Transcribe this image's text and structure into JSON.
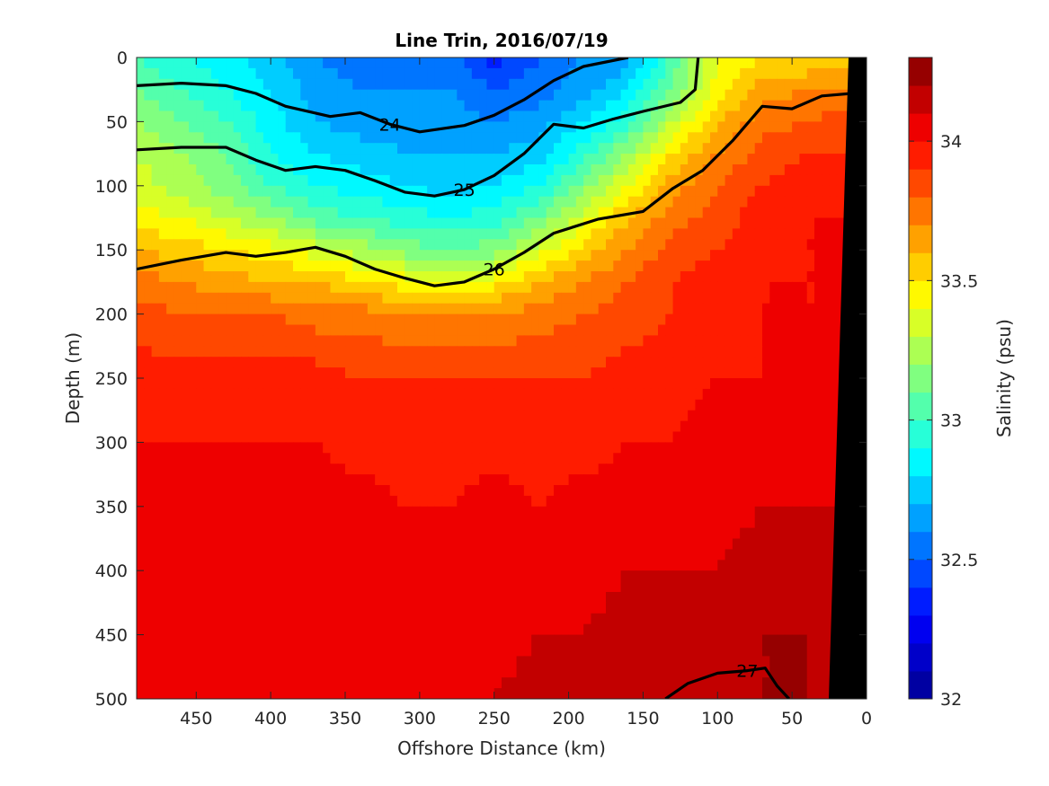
{
  "chart_data": {
    "type": "heatmap",
    "title": "Line Trin, 2016/07/19",
    "xlabel": "Offshore Distance (km)",
    "ylabel": "Depth (m)",
    "xlim": [
      490,
      0
    ],
    "ylim": [
      0,
      500
    ],
    "x_reversed": true,
    "y_reversed": true,
    "xticks": [
      450,
      400,
      350,
      300,
      250,
      200,
      150,
      100,
      50,
      0
    ],
    "yticks": [
      0,
      50,
      100,
      150,
      200,
      250,
      300,
      350,
      400,
      450,
      500
    ],
    "colorbar": {
      "label": "Salinity (psu)",
      "range": [
        32,
        34.3
      ],
      "ticks": [
        32,
        32.5,
        33,
        33.5,
        34
      ],
      "levels": 23,
      "colormap": [
        "#00008f",
        "#0000ff",
        "#0080ff",
        "#00ffff",
        "#80ff80",
        "#ffff00",
        "#ff8000",
        "#ff0000",
        "#800000"
      ]
    },
    "field_x": [
      490,
      460,
      430,
      400,
      370,
      340,
      310,
      280,
      250,
      220,
      190,
      160,
      130,
      100,
      70,
      40,
      10
    ],
    "field_depth": [
      0,
      25,
      50,
      75,
      100,
      125,
      150,
      175,
      200,
      250,
      300,
      350,
      400,
      450,
      500
    ],
    "salinity": [
      [
        33.0,
        32.9,
        32.85,
        32.75,
        32.6,
        32.55,
        32.55,
        32.55,
        32.35,
        32.5,
        32.6,
        32.65,
        33.05,
        33.4,
        33.5,
        33.5,
        33.5
      ],
      [
        33.1,
        33.0,
        32.9,
        32.8,
        32.65,
        32.6,
        32.6,
        32.6,
        32.5,
        32.55,
        32.65,
        32.8,
        33.1,
        33.45,
        33.65,
        33.7,
        33.7
      ],
      [
        33.2,
        33.1,
        33.0,
        32.85,
        32.7,
        32.65,
        32.65,
        32.65,
        32.6,
        32.65,
        32.8,
        32.95,
        33.3,
        33.6,
        33.75,
        33.8,
        33.85
      ],
      [
        33.3,
        33.2,
        33.1,
        32.9,
        32.8,
        32.75,
        32.7,
        32.7,
        32.7,
        32.75,
        32.95,
        33.2,
        33.5,
        33.7,
        33.85,
        33.9,
        33.9
      ],
      [
        33.35,
        33.25,
        33.15,
        33.0,
        32.9,
        32.85,
        32.8,
        32.75,
        32.8,
        32.9,
        33.15,
        33.4,
        33.65,
        33.8,
        33.9,
        33.95,
        33.95
      ],
      [
        33.45,
        33.4,
        33.3,
        33.2,
        33.05,
        33.0,
        32.95,
        32.9,
        32.95,
        33.1,
        33.35,
        33.6,
        33.75,
        33.85,
        33.95,
        34.0,
        34.0
      ],
      [
        33.6,
        33.55,
        33.5,
        33.45,
        33.35,
        33.25,
        33.15,
        33.1,
        33.15,
        33.35,
        33.55,
        33.7,
        33.85,
        33.9,
        33.95,
        34.0,
        34.0
      ],
      [
        33.75,
        33.7,
        33.65,
        33.6,
        33.6,
        33.5,
        33.45,
        33.4,
        33.45,
        33.6,
        33.7,
        33.8,
        33.9,
        33.95,
        34.0,
        34.0,
        34.0
      ],
      [
        33.85,
        33.8,
        33.8,
        33.8,
        33.75,
        33.75,
        33.7,
        33.7,
        33.7,
        33.75,
        33.8,
        33.85,
        33.9,
        33.95,
        34.0,
        34.0,
        34.0
      ],
      [
        33.95,
        33.95,
        33.95,
        33.95,
        33.95,
        33.9,
        33.9,
        33.9,
        33.9,
        33.9,
        33.9,
        33.95,
        33.95,
        34.0,
        34.0,
        34.05,
        34.05
      ],
      [
        34.0,
        34.0,
        34.0,
        34.0,
        34.0,
        33.95,
        33.95,
        33.95,
        33.95,
        33.95,
        33.95,
        34.0,
        34.0,
        34.05,
        34.05,
        34.05,
        34.05
      ],
      [
        34.05,
        34.05,
        34.05,
        34.05,
        34.05,
        34.05,
        34.0,
        34.0,
        34.05,
        34.0,
        34.05,
        34.05,
        34.05,
        34.05,
        34.1,
        34.1,
        34.1
      ],
      [
        34.05,
        34.05,
        34.05,
        34.05,
        34.05,
        34.05,
        34.05,
        34.05,
        34.05,
        34.05,
        34.05,
        34.1,
        34.1,
        34.1,
        34.15,
        34.15,
        34.1
      ],
      [
        34.1,
        34.05,
        34.05,
        34.05,
        34.05,
        34.05,
        34.05,
        34.05,
        34.05,
        34.1,
        34.1,
        34.15,
        34.15,
        34.15,
        34.2,
        34.2,
        34.15
      ],
      [
        34.1,
        34.1,
        34.05,
        34.05,
        34.05,
        34.1,
        34.1,
        34.1,
        34.1,
        34.15,
        34.15,
        34.15,
        34.2,
        34.2,
        34.2,
        34.2,
        34.2
      ]
    ],
    "density_contours": [
      {
        "label": "24",
        "points": [
          [
            490,
            22
          ],
          [
            460,
            20
          ],
          [
            430,
            22
          ],
          [
            410,
            28
          ],
          [
            390,
            38
          ],
          [
            360,
            46
          ],
          [
            340,
            43
          ],
          [
            320,
            52
          ],
          [
            300,
            58
          ],
          [
            270,
            53
          ],
          [
            250,
            45
          ],
          [
            230,
            33
          ],
          [
            210,
            18
          ],
          [
            190,
            7
          ],
          [
            160,
            0
          ]
        ]
      },
      {
        "label": "25",
        "points": [
          [
            490,
            72
          ],
          [
            460,
            70
          ],
          [
            430,
            70
          ],
          [
            410,
            80
          ],
          [
            390,
            88
          ],
          [
            370,
            85
          ],
          [
            350,
            88
          ],
          [
            330,
            96
          ],
          [
            310,
            105
          ],
          [
            290,
            108
          ],
          [
            270,
            103
          ],
          [
            250,
            92
          ],
          [
            230,
            75
          ],
          [
            210,
            52
          ],
          [
            190,
            55
          ],
          [
            170,
            48
          ],
          [
            150,
            42
          ],
          [
            125,
            35
          ],
          [
            115,
            25
          ],
          [
            113,
            0
          ]
        ]
      },
      {
        "label": "26",
        "points": [
          [
            490,
            165
          ],
          [
            460,
            158
          ],
          [
            430,
            152
          ],
          [
            410,
            155
          ],
          [
            390,
            152
          ],
          [
            370,
            148
          ],
          [
            350,
            155
          ],
          [
            330,
            165
          ],
          [
            310,
            172
          ],
          [
            290,
            178
          ],
          [
            270,
            175
          ],
          [
            250,
            165
          ],
          [
            230,
            152
          ],
          [
            210,
            137
          ],
          [
            180,
            126
          ],
          [
            150,
            120
          ],
          [
            130,
            102
          ],
          [
            110,
            88
          ],
          [
            90,
            65
          ],
          [
            70,
            38
          ],
          [
            50,
            40
          ],
          [
            30,
            30
          ],
          [
            10,
            28
          ]
        ]
      },
      {
        "label": "27",
        "points": [
          [
            135,
            500
          ],
          [
            120,
            488
          ],
          [
            100,
            480
          ],
          [
            80,
            478
          ],
          [
            68,
            476
          ],
          [
            60,
            490
          ],
          [
            52,
            500
          ]
        ]
      }
    ]
  }
}
